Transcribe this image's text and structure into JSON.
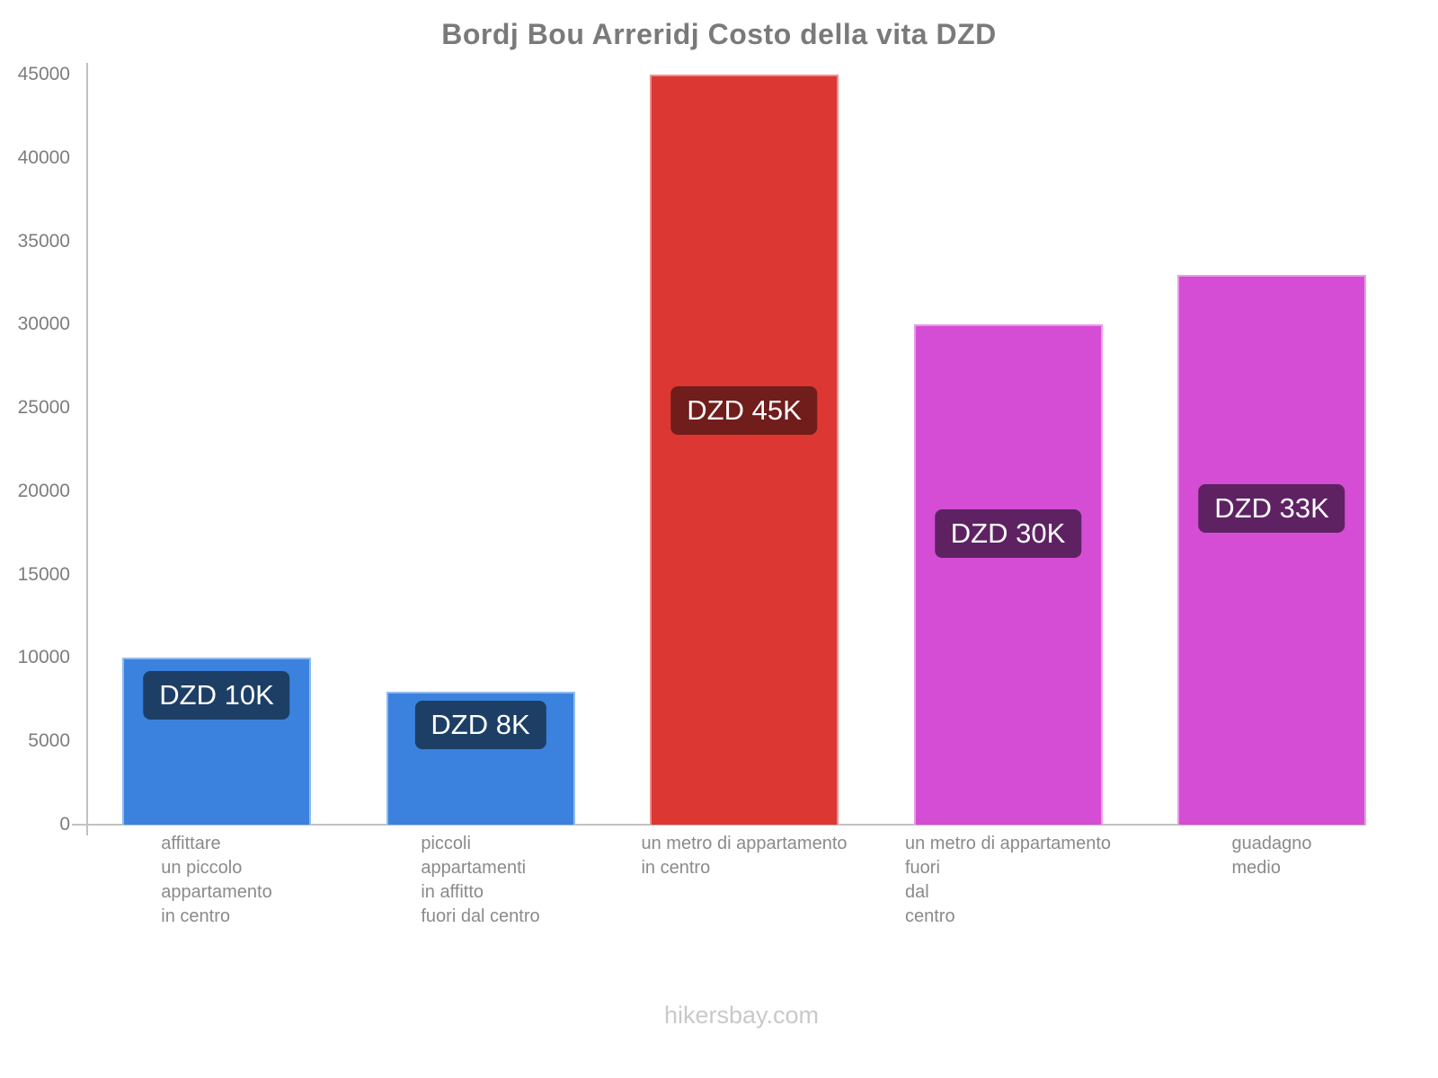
{
  "page": {
    "footer": "hikersbay.com"
  },
  "colors": {
    "axis": "#c2c2c2",
    "title_text": "#7a7a7a",
    "tick_text": "#7d7d7d",
    "category_text": "#8a8a8a",
    "footer_text": "#c9c9c9",
    "value_label_text": "#ffffff",
    "blue_bar": "#3b82de",
    "blue_label_bg": "#1d3f66",
    "red_bar": "#dc3732",
    "red_label_bg": "#701d1b",
    "magenta_bar": "#d44dd4",
    "magenta_label_bg": "#5e2263"
  },
  "chart_data": {
    "type": "bar",
    "title": "Bordj Bou Arreridj Costo della vita DZD",
    "xlabel": "",
    "ylabel": "",
    "ylim": [
      0,
      45000
    ],
    "y_ticks": [
      0,
      5000,
      10000,
      15000,
      20000,
      25000,
      30000,
      35000,
      40000,
      45000
    ],
    "grid": false,
    "legend": false,
    "categories": [
      "affittare un piccolo appartamento in centro",
      "piccoli appartamenti in affitto fuori dal centro",
      "un metro di appartamento in centro",
      "un metro di appartamento fuori dal centro",
      "guadagno medio"
    ],
    "values": [
      10000,
      8000,
      45000,
      30000,
      33000
    ],
    "bars": [
      {
        "category_lines": [
          "affittare",
          "un piccolo",
          "appartamento",
          "in centro"
        ],
        "value": 10000,
        "value_label": "DZD 10K",
        "bar_color": "#3b82de",
        "label_bg": "#1d3f66"
      },
      {
        "category_lines": [
          "piccoli",
          "appartamenti",
          "in affitto",
          "fuori dal centro"
        ],
        "value": 8000,
        "value_label": "DZD 8K",
        "bar_color": "#3b82de",
        "label_bg": "#1d3f66"
      },
      {
        "category_lines": [
          "un metro di appartamento",
          "in centro"
        ],
        "value": 45000,
        "value_label": "DZD 45K",
        "bar_color": "#dc3732",
        "label_bg": "#701d1b"
      },
      {
        "category_lines": [
          "un metro di appartamento",
          "fuori",
          "dal",
          "centro"
        ],
        "value": 30000,
        "value_label": "DZD 30K",
        "bar_color": "#d44dd4",
        "label_bg": "#5e2263"
      },
      {
        "category_lines": [
          "guadagno",
          "medio"
        ],
        "value": 33000,
        "value_label": "DZD 33K",
        "bar_color": "#d44dd4",
        "label_bg": "#5e2263"
      }
    ]
  }
}
